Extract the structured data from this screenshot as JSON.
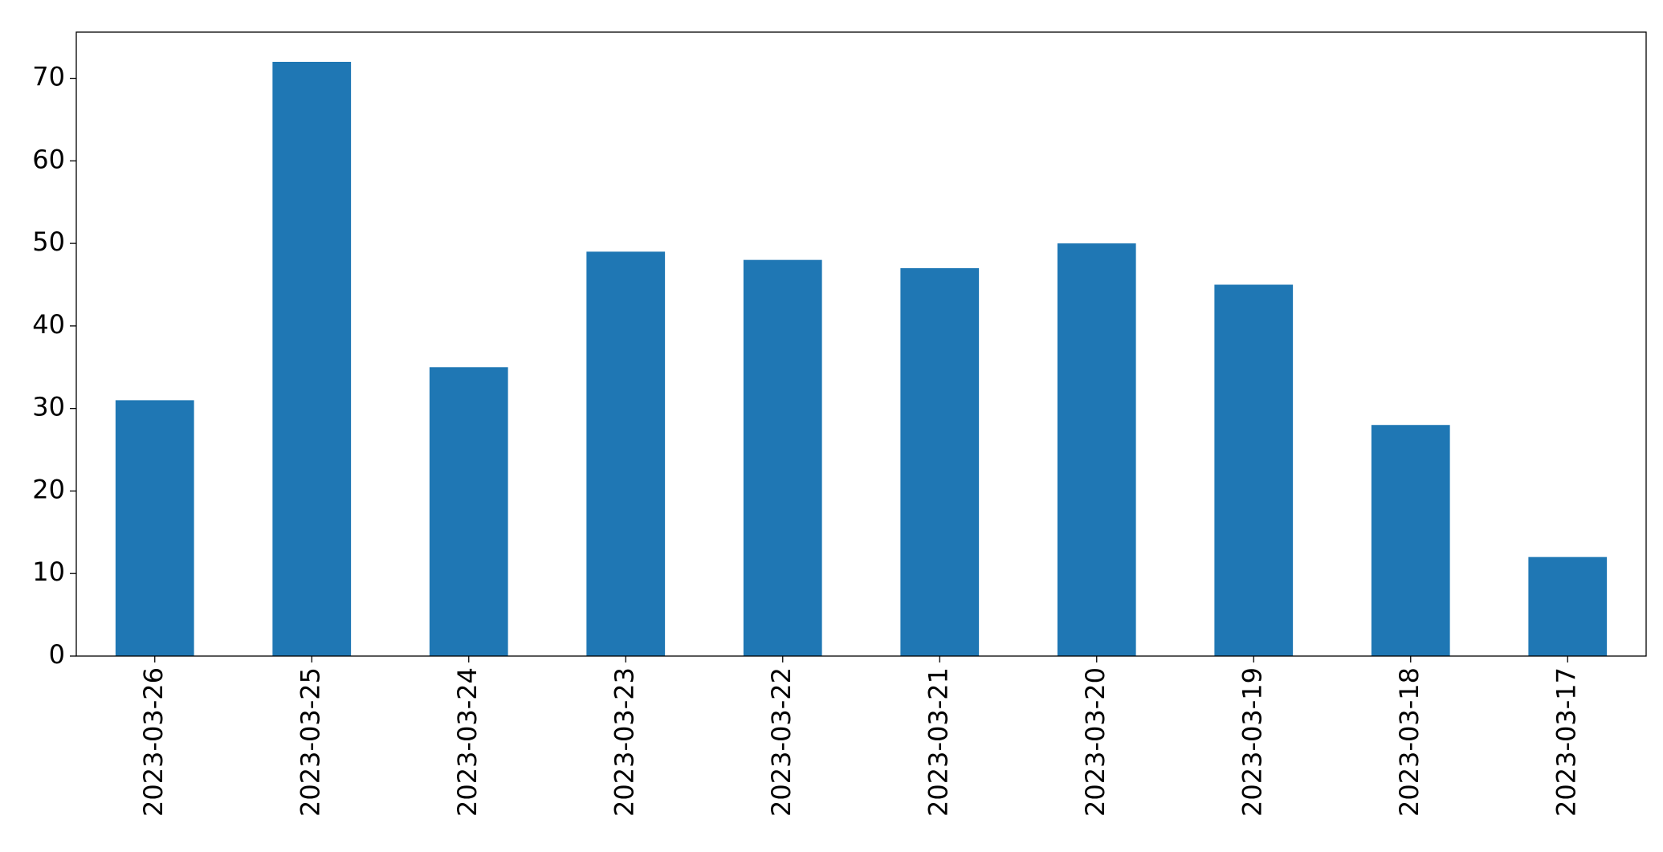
{
  "chart_data": {
    "type": "bar",
    "categories": [
      "2023-03-26",
      "2023-03-25",
      "2023-03-24",
      "2023-03-23",
      "2023-03-22",
      "2023-03-21",
      "2023-03-20",
      "2023-03-19",
      "2023-03-18",
      "2023-03-17"
    ],
    "values": [
      31,
      72,
      35,
      49,
      48,
      47,
      50,
      45,
      28,
      12
    ],
    "color": "#1f77b4",
    "ylim": [
      0,
      75.6
    ],
    "yticks": [
      0,
      10,
      20,
      30,
      40,
      50,
      60,
      70
    ],
    "grid": false
  }
}
